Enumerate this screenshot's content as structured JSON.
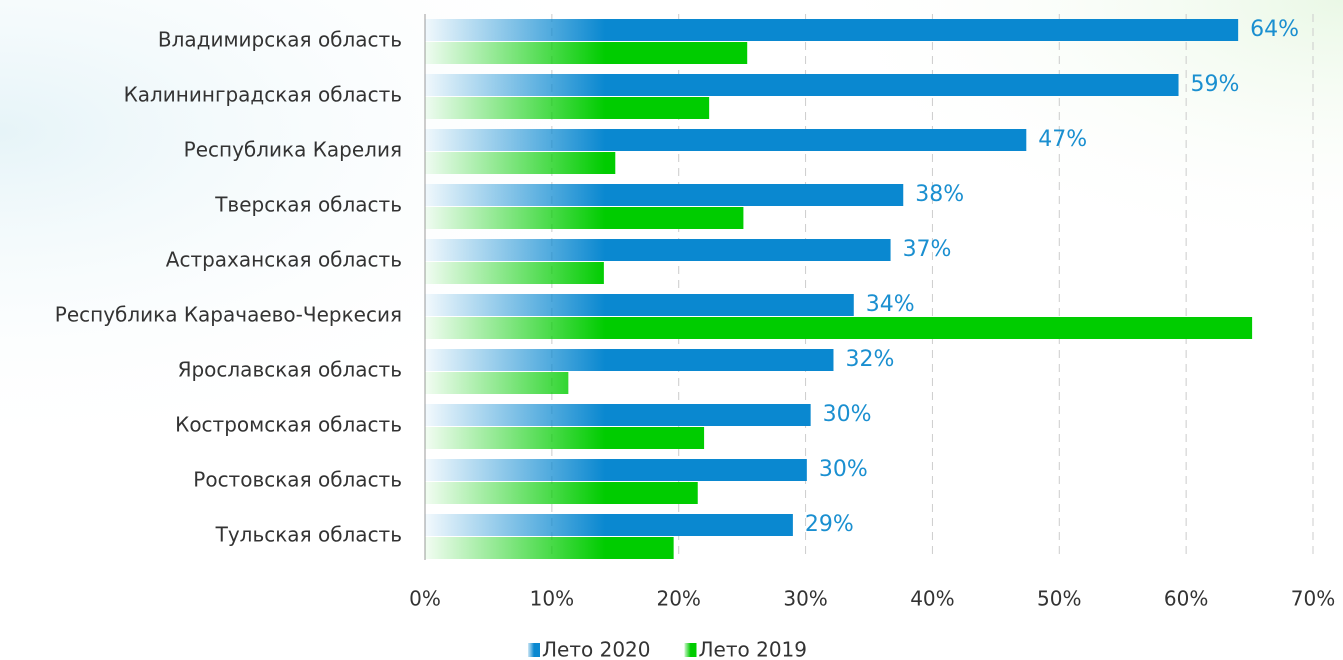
{
  "chart_data": {
    "type": "bar",
    "orientation": "horizontal",
    "categories": [
      "Владимирская область",
      "Калининградская область",
      "Республика Карелия",
      "Тверская область",
      "Астраханская область",
      "Республика Карачаево-Черкесия",
      "Ярославская область",
      "Костромская область",
      "Ростовская область",
      "Тульская область"
    ],
    "series": [
      {
        "name": "Лето 2020",
        "color": "#0a88d0",
        "values": [
          64.1,
          59.4,
          47.4,
          37.7,
          36.7,
          33.8,
          32.2,
          30.4,
          30.1,
          29.0
        ],
        "value_labels": [
          "64%",
          "59%",
          "47%",
          "38%",
          "37%",
          "34%",
          "32%",
          "30%",
          "30%",
          "29%"
        ]
      },
      {
        "name": "Лето 2019",
        "color": "#00cc00",
        "values": [
          25.4,
          22.4,
          15.0,
          25.1,
          14.1,
          65.2,
          11.3,
          22.0,
          21.5,
          19.6
        ]
      }
    ],
    "xlim": [
      0,
      70
    ],
    "xticks": [
      {
        "value": 0,
        "label": "0%"
      },
      {
        "value": 10,
        "label": "10%"
      },
      {
        "value": 20,
        "label": "20%"
      },
      {
        "value": 30,
        "label": "30%"
      },
      {
        "value": 40,
        "label": "40%"
      },
      {
        "value": 50,
        "label": "50%"
      },
      {
        "value": 60,
        "label": "60%"
      },
      {
        "value": 70,
        "label": "70%"
      }
    ],
    "grid": true,
    "legend": "bottom"
  }
}
